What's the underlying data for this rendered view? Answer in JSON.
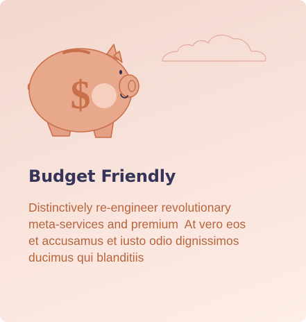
{
  "card": {
    "title": "Budget Friendly",
    "description": "Distinctively re-engineer revolutionary\nmeta-services and premium  At vero eos\net accusamus et iusto odio dignissimos\nducimus qui blanditiis"
  },
  "illustration": {
    "icon": "piggy-bank-icon",
    "decoration": "cloud-icon",
    "currency_symbol": "$"
  },
  "colors": {
    "title": "#363559",
    "text": "#b5643c",
    "pig_fill": "#e8a88c",
    "pig_outline": "#c96f4a",
    "background_start": "#f3d6cd",
    "background_end": "#fdeee6"
  }
}
